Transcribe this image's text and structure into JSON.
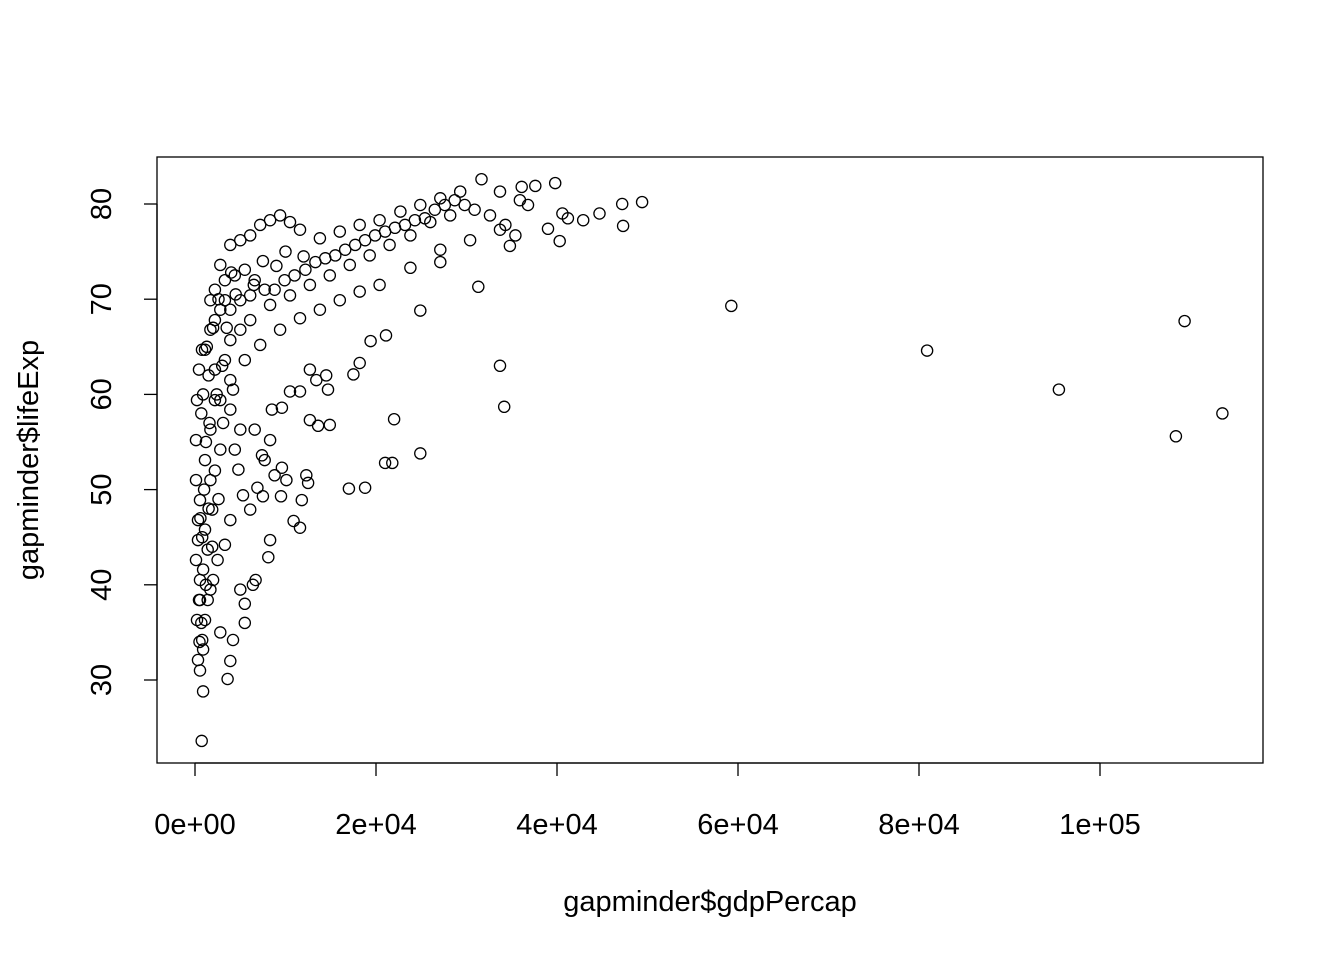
{
  "chart_data": {
    "type": "scatter",
    "title": "",
    "xlabel": "gapminder$gdpPercap",
    "ylabel": "gapminder$lifeExp",
    "xlim": [
      -4000,
      118500
    ],
    "ylim": [
      20.5,
      85
    ],
    "xticks": [
      0,
      20000,
      40000,
      60000,
      80000,
      100000
    ],
    "xtick_labels": [
      "0e+00",
      "2e+04",
      "4e+04",
      "6e+04",
      "8e+04",
      "1e+05"
    ],
    "yticks": [
      30,
      40,
      50,
      60,
      70,
      80
    ],
    "ytick_labels": [
      "30",
      "40",
      "50",
      "60",
      "70",
      "80"
    ],
    "grid": false,
    "marker": "open-circle",
    "color": "#000000",
    "points": [
      [
        108382,
        55.6
      ],
      [
        113523,
        58.0
      ],
      [
        95458,
        60.5
      ],
      [
        80895,
        64.6
      ],
      [
        109348,
        67.7
      ],
      [
        59265,
        69.3
      ],
      [
        31656,
        82.6
      ],
      [
        39800,
        82.2
      ],
      [
        49400,
        80.2
      ],
      [
        47200,
        80.0
      ],
      [
        47300,
        77.7
      ],
      [
        44700,
        79.0
      ],
      [
        42900,
        78.3
      ],
      [
        41200,
        78.5
      ],
      [
        40600,
        79.0
      ],
      [
        40300,
        76.1
      ],
      [
        39000,
        77.4
      ],
      [
        36100,
        81.8
      ],
      [
        37600,
        81.9
      ],
      [
        36800,
        79.9
      ],
      [
        34800,
        75.6
      ],
      [
        31300,
        71.3
      ],
      [
        24900,
        68.8
      ],
      [
        21100,
        66.2
      ],
      [
        19400,
        65.6
      ],
      [
        18200,
        63.3
      ],
      [
        17500,
        62.1
      ],
      [
        33700,
        63.0
      ],
      [
        34168,
        58.7
      ],
      [
        22000,
        57.4
      ],
      [
        21000,
        52.8
      ],
      [
        21800,
        52.8
      ],
      [
        24900,
        53.8
      ],
      [
        17000,
        50.1
      ],
      [
        18800,
        50.2
      ],
      [
        11800,
        48.9
      ],
      [
        11600,
        46.0
      ],
      [
        10900,
        46.7
      ],
      [
        8300,
        44.7
      ],
      [
        8100,
        42.9
      ],
      [
        6700,
        40.5
      ],
      [
        6400,
        40.0
      ],
      [
        5500,
        38.0
      ],
      [
        5500,
        36.0
      ],
      [
        4200,
        34.2
      ],
      [
        3900,
        32.0
      ],
      [
        3600,
        30.1
      ],
      [
        900,
        28.8
      ],
      [
        737,
        23.6
      ],
      [
        2800,
        35.0
      ],
      [
        5000,
        39.5
      ],
      [
        14900,
        56.8
      ],
      [
        12700,
        57.3
      ],
      [
        13600,
        56.7
      ],
      [
        14700,
        60.5
      ],
      [
        13400,
        61.5
      ],
      [
        14500,
        62.0
      ],
      [
        12700,
        62.6
      ],
      [
        11600,
        60.3
      ],
      [
        10500,
        60.3
      ],
      [
        9600,
        58.6
      ],
      [
        8500,
        58.4
      ],
      [
        9600,
        52.3
      ],
      [
        12300,
        51.5
      ],
      [
        12500,
        50.7
      ],
      [
        10100,
        51.0
      ],
      [
        7500,
        49.3
      ],
      [
        9500,
        49.3
      ],
      [
        6900,
        50.2
      ],
      [
        6100,
        47.9
      ],
      [
        5300,
        49.4
      ],
      [
        4800,
        52.1
      ],
      [
        7400,
        53.6
      ],
      [
        8300,
        55.2
      ],
      [
        7700,
        53.1
      ],
      [
        8800,
        51.5
      ],
      [
        6600,
        56.3
      ],
      [
        4400,
        54.2
      ],
      [
        3900,
        46.8
      ],
      [
        3300,
        44.2
      ],
      [
        2500,
        42.6
      ],
      [
        2000,
        40.5
      ],
      [
        1400,
        38.4
      ],
      [
        1100,
        36.3
      ],
      [
        900,
        33.2
      ],
      [
        550,
        31.0
      ],
      [
        2800,
        73.6
      ],
      [
        3900,
        75.7
      ],
      [
        5000,
        76.2
      ],
      [
        6100,
        76.7
      ],
      [
        7200,
        77.8
      ],
      [
        8300,
        78.3
      ],
      [
        9400,
        78.8
      ],
      [
        10500,
        78.1
      ],
      [
        11600,
        77.3
      ],
      [
        13800,
        76.4
      ],
      [
        16000,
        77.1
      ],
      [
        18200,
        77.8
      ],
      [
        20400,
        78.3
      ],
      [
        22700,
        79.2
      ],
      [
        24900,
        79.9
      ],
      [
        27100,
        80.6
      ],
      [
        29300,
        81.3
      ],
      [
        33700,
        81.3
      ],
      [
        35900,
        80.4
      ],
      [
        28200,
        78.8
      ],
      [
        26000,
        78.1
      ],
      [
        23800,
        76.7
      ],
      [
        21500,
        75.7
      ],
      [
        19300,
        74.6
      ],
      [
        17100,
        73.6
      ],
      [
        14900,
        72.5
      ],
      [
        12700,
        71.5
      ],
      [
        10500,
        70.4
      ],
      [
        8300,
        69.4
      ],
      [
        6100,
        67.8
      ],
      [
        3900,
        65.7
      ],
      [
        2200,
        62.6
      ],
      [
        27100,
        75.2
      ],
      [
        30400,
        76.2
      ],
      [
        33700,
        77.3
      ],
      [
        27100,
        73.9
      ],
      [
        23800,
        73.3
      ],
      [
        20400,
        71.5
      ],
      [
        18200,
        70.8
      ],
      [
        16000,
        69.9
      ],
      [
        13800,
        68.9
      ],
      [
        11600,
        68.0
      ],
      [
        9400,
        66.8
      ],
      [
        7200,
        65.2
      ],
      [
        5500,
        63.6
      ],
      [
        3900,
        61.5
      ],
      [
        2800,
        59.4
      ],
      [
        1700,
        56.3
      ],
      [
        1100,
        53.1
      ],
      [
        550,
        48.9
      ],
      [
        330,
        44.7
      ],
      [
        550,
        40.5
      ],
      [
        220,
        36.3
      ],
      [
        2200,
        71.0
      ],
      [
        3300,
        72.0
      ],
      [
        4400,
        72.5
      ],
      [
        5500,
        73.1
      ],
      [
        6600,
        72.0
      ],
      [
        7700,
        71.0
      ],
      [
        8800,
        71.0
      ],
      [
        9900,
        72.0
      ],
      [
        11000,
        72.5
      ],
      [
        12200,
        73.1
      ],
      [
        13300,
        73.9
      ],
      [
        14400,
        74.3
      ],
      [
        15500,
        74.6
      ],
      [
        16600,
        75.2
      ],
      [
        17700,
        75.7
      ],
      [
        18800,
        76.2
      ],
      [
        19900,
        76.7
      ],
      [
        21000,
        77.1
      ],
      [
        22100,
        77.5
      ],
      [
        23200,
        77.8
      ],
      [
        24300,
        78.3
      ],
      [
        25400,
        78.5
      ],
      [
        26500,
        79.4
      ],
      [
        27600,
        79.9
      ],
      [
        28700,
        80.4
      ],
      [
        29800,
        79.9
      ],
      [
        30900,
        79.4
      ],
      [
        32600,
        78.8
      ],
      [
        34300,
        77.8
      ],
      [
        35400,
        76.7
      ],
      [
        1700,
        69.9
      ],
      [
        1700,
        66.8
      ],
      [
        1100,
        64.7
      ],
      [
        2200,
        67.8
      ],
      [
        2800,
        68.9
      ],
      [
        3300,
        69.9
      ],
      [
        3900,
        68.9
      ],
      [
        5000,
        69.9
      ],
      [
        6100,
        70.4
      ],
      [
        5000,
        66.8
      ],
      [
        3300,
        63.6
      ],
      [
        2200,
        59.4
      ],
      [
        3900,
        58.4
      ],
      [
        5000,
        56.3
      ],
      [
        2800,
        54.2
      ],
      [
        1700,
        51.0
      ],
      [
        1900,
        47.9
      ],
      [
        1100,
        45.8
      ],
      [
        1400,
        43.7
      ],
      [
        900,
        41.6
      ],
      [
        1700,
        39.5
      ],
      [
        550,
        38.4
      ],
      [
        800,
        34.2
      ],
      [
        330,
        32.1
      ],
      [
        110,
        55.2
      ],
      [
        220,
        59.4
      ],
      [
        440,
        62.6
      ],
      [
        770,
        64.7
      ],
      [
        110,
        51.0
      ],
      [
        330,
        46.8
      ],
      [
        110,
        42.6
      ],
      [
        440,
        38.4
      ],
      [
        600,
        47.0
      ],
      [
        800,
        45.0
      ],
      [
        1000,
        50.0
      ],
      [
        1200,
        55.0
      ],
      [
        700,
        58.0
      ],
      [
        900,
        60.0
      ],
      [
        1500,
        62.0
      ],
      [
        1300,
        65.0
      ],
      [
        2000,
        67.0
      ],
      [
        1600,
        57.0
      ],
      [
        2400,
        60.0
      ],
      [
        3000,
        63.0
      ],
      [
        3500,
        67.0
      ],
      [
        4500,
        70.5
      ],
      [
        6500,
        71.5
      ],
      [
        7500,
        74.0
      ],
      [
        9000,
        73.5
      ],
      [
        10000,
        75.0
      ],
      [
        12000,
        74.5
      ],
      [
        4000,
        72.8
      ],
      [
        2600,
        70.0
      ],
      [
        1900,
        44.0
      ],
      [
        700,
        36.0
      ],
      [
        500,
        34.0
      ],
      [
        1200,
        40.0
      ],
      [
        1500,
        48.0
      ],
      [
        2200,
        52.0
      ],
      [
        2600,
        49.0
      ],
      [
        3100,
        57.0
      ],
      [
        4200,
        60.5
      ]
    ]
  }
}
